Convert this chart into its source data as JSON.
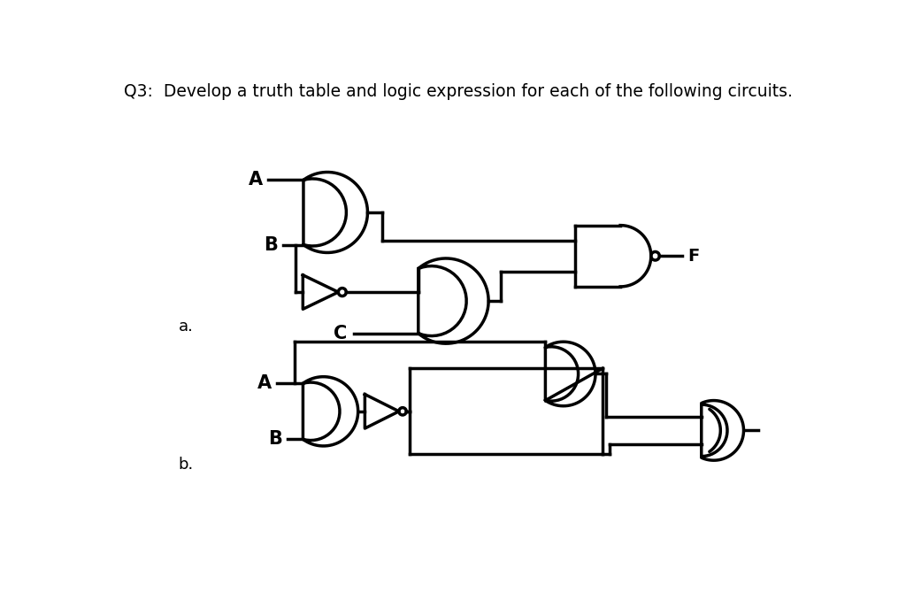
{
  "title": "Q3:  Develop a truth table and logic expression for each of the following circuits.",
  "bg_color": "#ffffff",
  "line_color": "#000000",
  "lw": 2.5,
  "label_a": "a.",
  "label_b": "b.",
  "label_F": "F",
  "label_A": "A",
  "label_B": "B",
  "label_C": "C"
}
